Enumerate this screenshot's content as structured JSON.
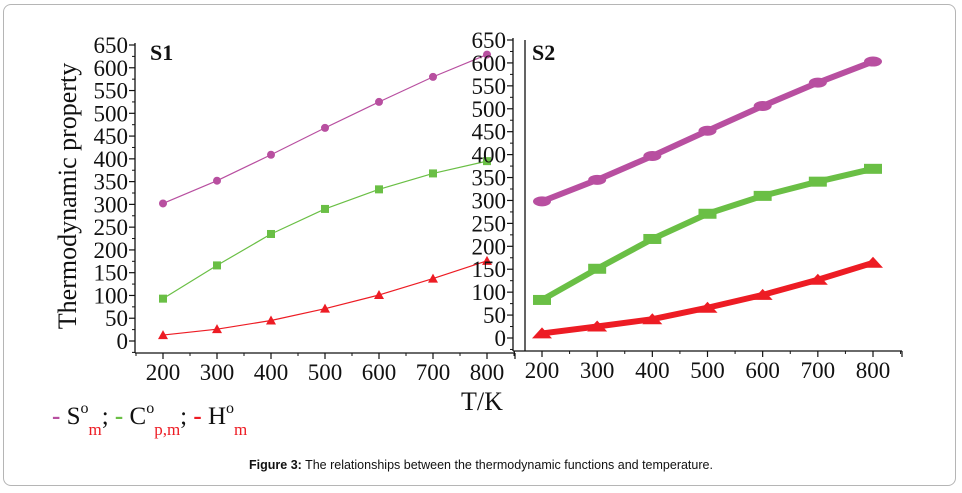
{
  "figure": {
    "caption_label": "Figure 3:",
    "caption_text": " The relationships between the thermodynamic functions and temperature."
  },
  "legend": [
    {
      "dash": "-",
      "symbol": "S",
      "sup": "o",
      "sub": "m",
      "sep": ";",
      "color": "#b84fa0"
    },
    {
      "dash": "-",
      "symbol": "C",
      "sup": "o",
      "sub": "p,m",
      "sep": ";",
      "color": "#6abf45"
    },
    {
      "dash": "-",
      "symbol": "H",
      "sup": "o",
      "sub": "m",
      "sep": "",
      "color": "#ed1c24"
    }
  ],
  "chart_data": [
    {
      "type": "line",
      "title": "S1",
      "xlabel": "T/K",
      "ylabel": "Thermodynamic property",
      "x": [
        200,
        300,
        400,
        500,
        600,
        700,
        800
      ],
      "xticks": [
        "200",
        "300",
        "400",
        "500",
        "600",
        "700",
        "800"
      ],
      "yticks": [
        "0",
        "50",
        "100",
        "150",
        "200",
        "250",
        "300",
        "350",
        "400",
        "450",
        "500",
        "550",
        "600",
        "650"
      ],
      "xlim": [
        150,
        850
      ],
      "ylim": [
        -25,
        650
      ],
      "grid": false,
      "legend": "bottom-left",
      "series": [
        {
          "name": "S°m",
          "color": "#b84fa0",
          "marker": "circle",
          "values": [
            302,
            352,
            409,
            468,
            525,
            580,
            629
          ]
        },
        {
          "name": "C°p,m",
          "color": "#6abf45",
          "marker": "square",
          "values": [
            93,
            166,
            235,
            290,
            333,
            368,
            395
          ]
        },
        {
          "name": "H°m",
          "color": "#ed1c24",
          "marker": "triangle",
          "values": [
            13,
            26,
            45,
            71,
            101,
            137,
            176
          ]
        }
      ]
    },
    {
      "type": "line",
      "title": "S2",
      "xlabel": "T/K",
      "ylabel": "",
      "x": [
        200,
        300,
        400,
        500,
        600,
        700,
        800
      ],
      "xticks": [
        "200",
        "300",
        "400",
        "500",
        "600",
        "700",
        "800"
      ],
      "yticks": [
        "0",
        "50",
        "100",
        "150",
        "200",
        "250",
        "300",
        "350",
        "400",
        "450",
        "500",
        "550",
        "600",
        "650"
      ],
      "xlim": [
        145,
        855
      ],
      "ylim": [
        -28,
        650
      ],
      "grid": false,
      "legend": "bottom-left",
      "series": [
        {
          "name": "S°m",
          "color": "#b84fa0",
          "marker": "circle",
          "values": [
            298,
            345,
            397,
            452,
            506,
            557,
            603
          ]
        },
        {
          "name": "C°p,m",
          "color": "#6abf45",
          "marker": "square",
          "values": [
            83,
            151,
            216,
            271,
            310,
            341,
            369
          ]
        },
        {
          "name": "H°m",
          "color": "#ed1c24",
          "marker": "triangle",
          "values": [
            10,
            25,
            41,
            66,
            94,
            127,
            164
          ]
        }
      ]
    }
  ]
}
